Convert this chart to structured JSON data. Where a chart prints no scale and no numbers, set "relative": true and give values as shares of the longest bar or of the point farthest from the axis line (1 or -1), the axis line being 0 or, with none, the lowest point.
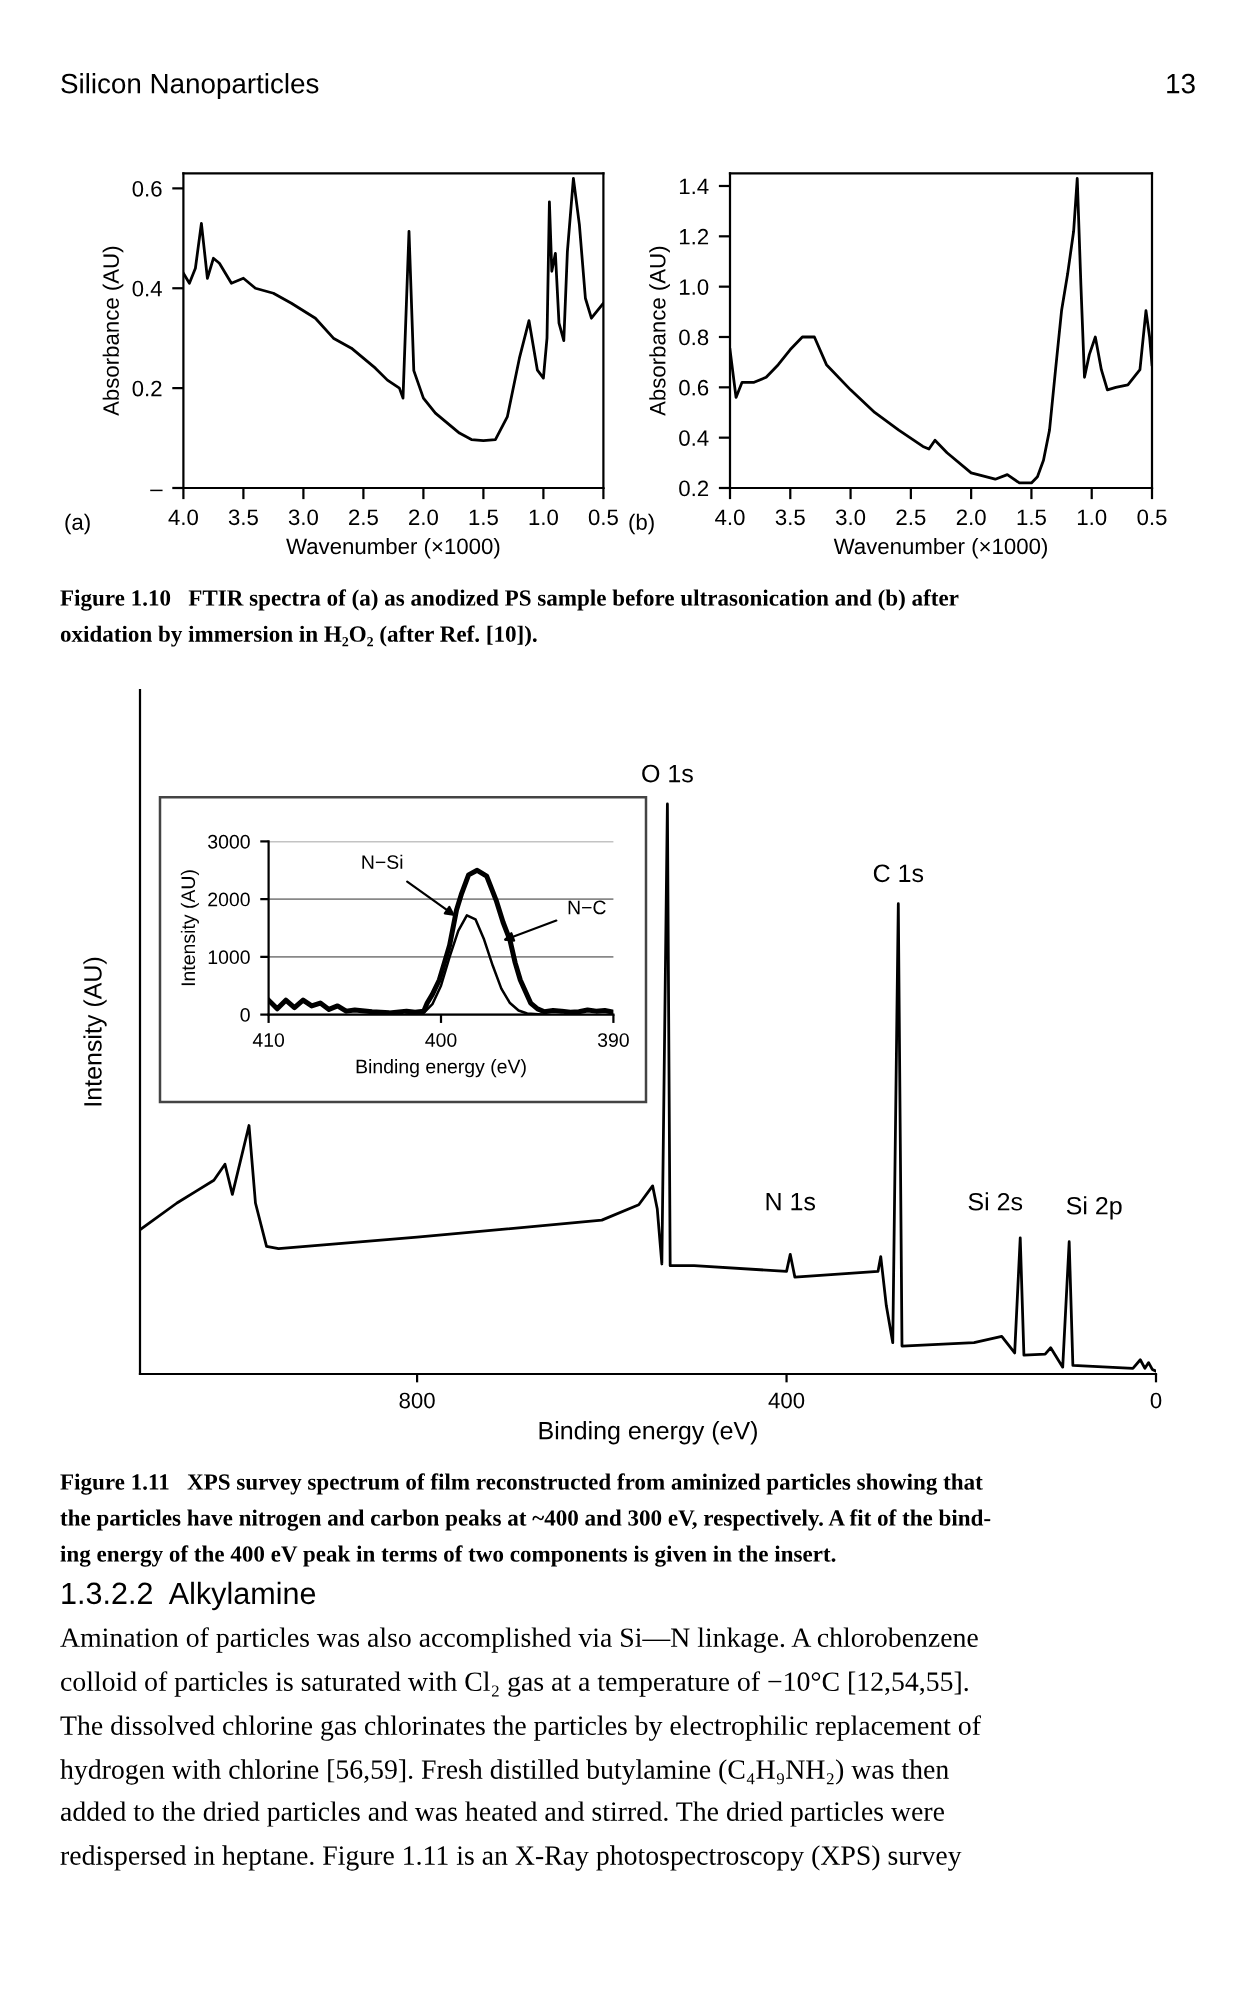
{
  "chart_data": [
    {
      "type": "line",
      "ylabel": "Absorbance (AU)",
      "xlabel": "Wavenumber (×1000)",
      "xlim": [
        4.0,
        0.5
      ],
      "ylim": [
        0,
        0.63
      ],
      "xticks": [
        {
          "value": 4,
          "label": "4.0"
        },
        3.5,
        {
          "value": 3,
          "label": "3.0"
        },
        2.5,
        {
          "value": 2,
          "label": "2.0"
        },
        1.5,
        {
          "value": 1,
          "label": "1.0"
        },
        0.5
      ],
      "yticks": [
        {
          "value": 0,
          "label": "–"
        },
        0.2,
        0.4,
        0.6
      ],
      "x": [
        4.0,
        3.95,
        3.9,
        3.85,
        3.8,
        3.75,
        3.7,
        3.6,
        3.5,
        3.4,
        3.25,
        3.1,
        3.0,
        2.9,
        2.75,
        2.6,
        2.5,
        2.4,
        2.3,
        2.2,
        2.17,
        2.12,
        2.08,
        2.0,
        1.9,
        1.8,
        1.7,
        1.6,
        1.5,
        1.4,
        1.3,
        1.2,
        1.12,
        1.05,
        1.0,
        0.97,
        0.95,
        0.93,
        0.9,
        0.87,
        0.83,
        0.8,
        0.75,
        0.7,
        0.65,
        0.6,
        0.55,
        0.5
      ],
      "series": [
        {
          "color": "#000000",
          "values": [
            0.43,
            0.41,
            0.44,
            0.53,
            0.42,
            0.46,
            0.45,
            0.41,
            0.42,
            0.4,
            0.39,
            0.37,
            0.355,
            0.34,
            0.3,
            0.28,
            0.26,
            0.24,
            0.216,
            0.2,
            0.18,
            0.514,
            0.235,
            0.18,
            0.15,
            0.13,
            0.11,
            0.097,
            0.095,
            0.097,
            0.143,
            0.26,
            0.335,
            0.236,
            0.22,
            0.3,
            0.573,
            0.434,
            0.47,
            0.33,
            0.295,
            0.474,
            0.62,
            0.527,
            0.38,
            0.34,
            0.355,
            0.37
          ]
        }
      ],
      "annotations": [
        "Silicon Nanoparticles",
        "13",
        "(a)"
      ]
    },
    {
      "type": "line",
      "ylabel": "Absorbance (AU)",
      "xlabel": "Wavenumber (×1000)",
      "xlim": [
        4.0,
        0.5
      ],
      "ylim": [
        0.2,
        1.45
      ],
      "xticks": [
        {
          "value": 4,
          "label": "4.0"
        },
        3.5,
        {
          "value": 3,
          "label": "3.0"
        },
        2.5,
        {
          "value": 2,
          "label": "2.0"
        },
        1.5,
        {
          "value": 1,
          "label": "1.0"
        },
        0.5
      ],
      "yticks": [
        0.2,
        0.4,
        0.6,
        0.8,
        {
          "value": 1,
          "label": "1.0"
        },
        1.2,
        1.4
      ],
      "x": [
        4.0,
        3.95,
        3.9,
        3.8,
        3.7,
        3.6,
        3.5,
        3.4,
        3.3,
        3.2,
        3.0,
        2.8,
        2.6,
        2.4,
        2.35,
        2.3,
        2.2,
        2.0,
        1.8,
        1.7,
        1.6,
        1.5,
        1.45,
        1.4,
        1.35,
        1.3,
        1.25,
        1.2,
        1.15,
        1.12,
        1.09,
        1.06,
        1.02,
        0.97,
        0.92,
        0.87,
        0.8,
        0.7,
        0.6,
        0.55,
        0.52,
        0.5
      ],
      "series": [
        {
          "color": "#000000",
          "values": [
            0.75,
            0.56,
            0.62,
            0.62,
            0.64,
            0.69,
            0.75,
            0.8,
            0.8,
            0.69,
            0.59,
            0.5,
            0.43,
            0.365,
            0.355,
            0.39,
            0.34,
            0.26,
            0.235,
            0.253,
            0.22,
            0.22,
            0.245,
            0.31,
            0.43,
            0.67,
            0.905,
            1.05,
            1.22,
            1.43,
            1.01,
            0.64,
            0.73,
            0.8,
            0.67,
            0.59,
            0.6,
            0.61,
            0.67,
            0.905,
            0.8,
            0.69
          ]
        }
      ],
      "annotations": [
        "(b)",
        "Figure 1.10   FTIR spectra of (a) as anodized PS sample before ultrasonication and (b) after",
        "oxidation by immersion in H₂O₂ (after Ref. [10])."
      ]
    },
    {
      "type": "line",
      "relative": true,
      "ylabel": "Intensity (AU)",
      "xlabel": "Binding energy (eV)",
      "xlim": [
        1100,
        0
      ],
      "xticks": [
        800,
        400,
        0
      ],
      "x": [
        1100,
        1060,
        1040,
        1020,
        1008,
        1000,
        982,
        975,
        963,
        950,
        800,
        600,
        560,
        545,
        540,
        535,
        529,
        526,
        500,
        400,
        396,
        391,
        301,
        298,
        292,
        285,
        279,
        275,
        197,
        167,
        153,
        147,
        143,
        120,
        114,
        101,
        94,
        90,
        25,
        17,
        12,
        8,
        4,
        0
      ],
      "series": [
        {
          "color": "#000000",
          "values": [
            0.253,
            0.3,
            0.32,
            0.34,
            0.368,
            0.315,
            0.436,
            0.3,
            0.224,
            0.22,
            0.24,
            0.27,
            0.297,
            0.33,
            0.29,
            0.193,
            1,
            0.19,
            0.19,
            0.18,
            0.21,
            0.17,
            0.18,
            0.206,
            0.12,
            0.055,
            0.825,
            0.049,
            0.055,
            0.066,
            0.037,
            0.239,
            0.033,
            0.035,
            0.046,
            0.012,
            0.232,
            0.015,
            0.01,
            0.025,
            0.01,
            0.02,
            0.008,
            0.005
          ]
        }
      ],
      "annotations": [
        {
          "text": "O 1s",
          "x": 529,
          "y": 1
        },
        {
          "text": "C 1s",
          "x": 279,
          "y": 0.825
        },
        {
          "text": "N 1s",
          "x": 396,
          "y": 0.21
        },
        {
          "text": "Si 2s",
          "x": 147,
          "y": 0.239
        },
        {
          "text": "Si 2p",
          "x": 94,
          "y": 0.232
        },
        "Figure 1.11   XPS survey spectrum of film reconstructed from aminized particles showing that",
        "the particles have nitrogen and carbon peaks at ~400 and 300 eV, respectively. A fit of the bind-",
        "ing energy of the 400 eV peak in terms of two components is given in the insert.",
        "1.3.2.2  Alkylamine",
        "Amination of particles was also accomplished via Si—N linkage. A chlorobenzene",
        "colloid of particles is saturated with Cl₂ gas at a temperature of −10°C [12,54,55].",
        "The dissolved chlorine gas chlorinates the particles by electrophilic replacement of",
        "hydrogen with chlorine [56,59]. Fresh distilled butylamine (C₄H₉NH₂) was then",
        "added to the dried particles and was heated and stirred. The dried particles were",
        "redispersed in heptane. Figure 1.11 is an X-Ray photospectroscopy (XPS) survey"
      ]
    },
    {
      "type": "line",
      "ylabel": "Intensity (AU)",
      "xlabel": "Binding energy (eV)",
      "xlim": [
        410,
        390
      ],
      "ylim": [
        0,
        3000
      ],
      "xticks": [
        410,
        400,
        390
      ],
      "yticks": [
        0,
        1000,
        2000,
        3000
      ],
      "grid": "y",
      "series": [
        {
          "color": "#000000",
          "x": [
            410,
            409.5,
            409,
            408.5,
            408,
            407.5,
            407,
            406.5,
            406,
            405.5,
            405,
            404,
            403,
            402,
            401.5,
            401,
            400.8,
            400.5,
            400.1,
            399.8,
            399.5,
            399.1,
            398.8,
            398.4,
            397.9,
            397.35,
            396.8,
            396.4,
            396,
            395.7,
            395.4,
            395.1,
            394.8,
            394.4,
            394,
            393.5,
            393,
            392.5,
            392,
            391.5,
            391,
            390.5,
            390
          ],
          "values": [
            250,
            100,
            250,
            120,
            250,
            150,
            200,
            90,
            150,
            60,
            80,
            50,
            30,
            60,
            40,
            60,
            200,
            350,
            600,
            900,
            1200,
            1810,
            2100,
            2420,
            2500,
            2400,
            1980,
            1600,
            1290,
            900,
            600,
            400,
            200,
            100,
            50,
            70,
            60,
            40,
            50,
            80,
            60,
            70,
            40
          ]
        },
        {
          "color": "#000000",
          "x": [
            402,
            401,
            400.5,
            400,
            399.5,
            399,
            398.5,
            398,
            397.5,
            397,
            396.5,
            396,
            395.5,
            395,
            394
          ],
          "values": [
            0,
            30,
            180,
            500,
            1000,
            1450,
            1720,
            1650,
            1300,
            850,
            450,
            200,
            70,
            20,
            0
          ]
        }
      ],
      "annotations": [
        {
          "text": "N−Si",
          "x": 398.9,
          "y": 1650
        },
        {
          "text": "N−C",
          "x": 396.7,
          "y": 1250
        }
      ]
    }
  ]
}
